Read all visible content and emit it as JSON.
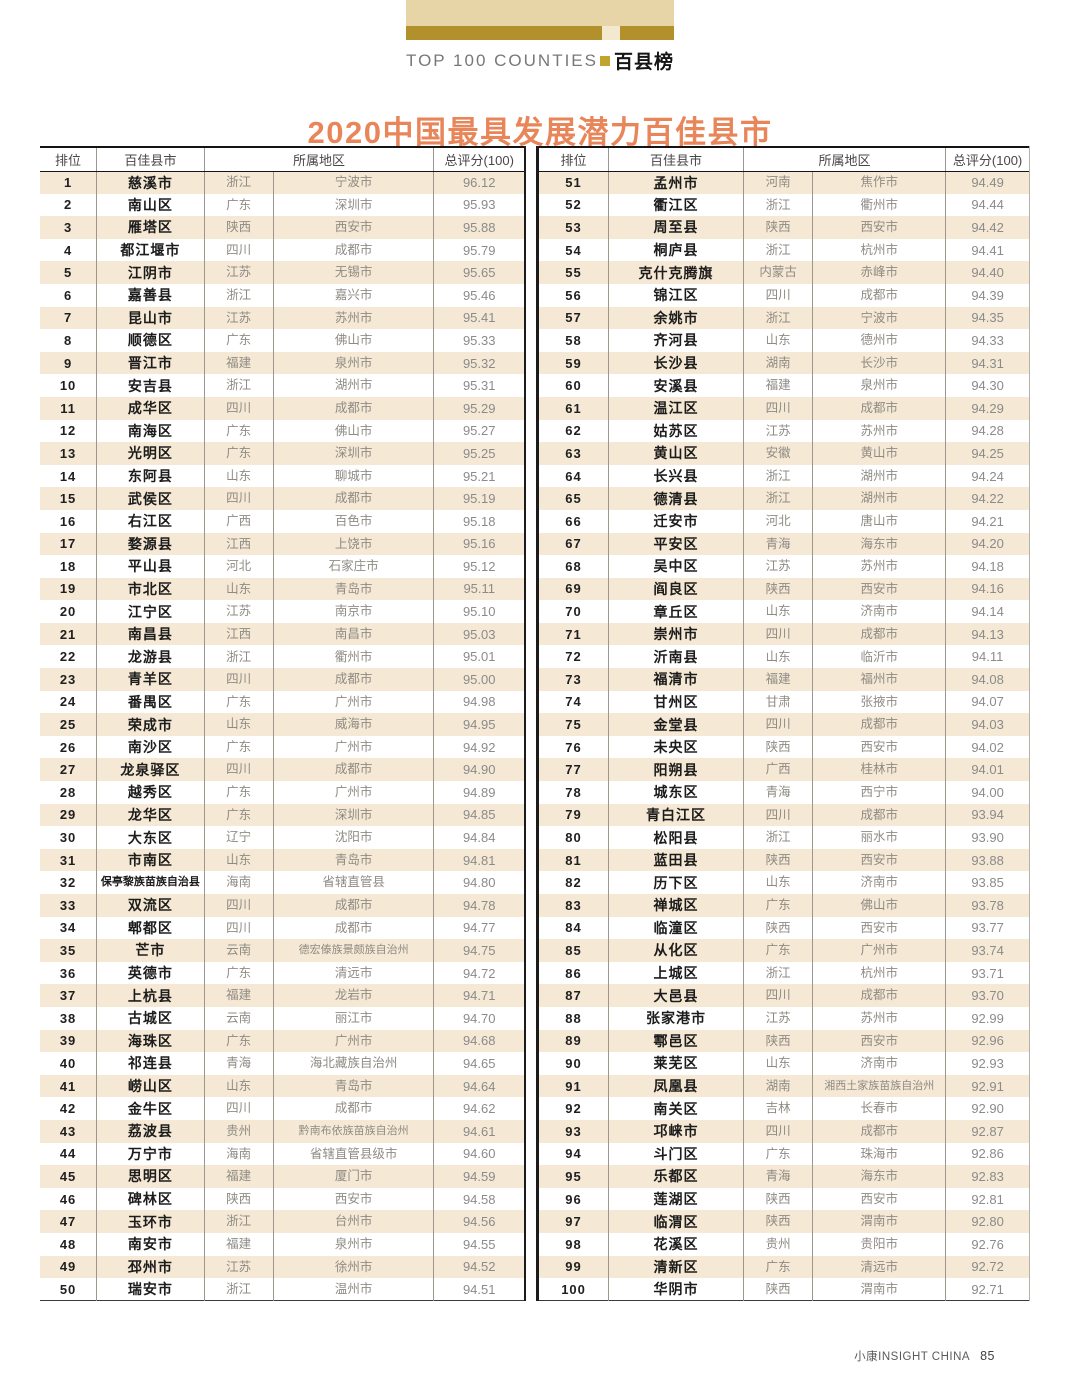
{
  "banner": {
    "label_en": "TOP 100 COUNTIES",
    "label_cn": "百县榜"
  },
  "title": "2020中国最具发展潜力百佳县市",
  "table": {
    "headers": {
      "rank": "排位",
      "county": "百佳县市",
      "region": "所属地区",
      "score": "总评分(100)"
    },
    "rows_left": [
      [
        "1",
        "慈溪市",
        "浙江",
        "宁波市",
        "96.12"
      ],
      [
        "2",
        "南山区",
        "广东",
        "深圳市",
        "95.93"
      ],
      [
        "3",
        "雁塔区",
        "陕西",
        "西安市",
        "95.88"
      ],
      [
        "4",
        "都江堰市",
        "四川",
        "成都市",
        "95.79"
      ],
      [
        "5",
        "江阴市",
        "江苏",
        "无锡市",
        "95.65"
      ],
      [
        "6",
        "嘉善县",
        "浙江",
        "嘉兴市",
        "95.46"
      ],
      [
        "7",
        "昆山市",
        "江苏",
        "苏州市",
        "95.41"
      ],
      [
        "8",
        "顺德区",
        "广东",
        "佛山市",
        "95.33"
      ],
      [
        "9",
        "晋江市",
        "福建",
        "泉州市",
        "95.32"
      ],
      [
        "10",
        "安吉县",
        "浙江",
        "湖州市",
        "95.31"
      ],
      [
        "11",
        "成华区",
        "四川",
        "成都市",
        "95.29"
      ],
      [
        "12",
        "南海区",
        "广东",
        "佛山市",
        "95.27"
      ],
      [
        "13",
        "光明区",
        "广东",
        "深圳市",
        "95.25"
      ],
      [
        "14",
        "东阿县",
        "山东",
        "聊城市",
        "95.21"
      ],
      [
        "15",
        "武侯区",
        "四川",
        "成都市",
        "95.19"
      ],
      [
        "16",
        "右江区",
        "广西",
        "百色市",
        "95.18"
      ],
      [
        "17",
        "婺源县",
        "江西",
        "上饶市",
        "95.16"
      ],
      [
        "18",
        "平山县",
        "河北",
        "石家庄市",
        "95.12"
      ],
      [
        "19",
        "市北区",
        "山东",
        "青岛市",
        "95.11"
      ],
      [
        "20",
        "江宁区",
        "江苏",
        "南京市",
        "95.10"
      ],
      [
        "21",
        "南昌县",
        "江西",
        "南昌市",
        "95.03"
      ],
      [
        "22",
        "龙游县",
        "浙江",
        "衢州市",
        "95.01"
      ],
      [
        "23",
        "青羊区",
        "四川",
        "成都市",
        "95.00"
      ],
      [
        "24",
        "番禺区",
        "广东",
        "广州市",
        "94.98"
      ],
      [
        "25",
        "荣成市",
        "山东",
        "威海市",
        "94.95"
      ],
      [
        "26",
        "南沙区",
        "广东",
        "广州市",
        "94.92"
      ],
      [
        "27",
        "龙泉驿区",
        "四川",
        "成都市",
        "94.90"
      ],
      [
        "28",
        "越秀区",
        "广东",
        "广州市",
        "94.89"
      ],
      [
        "29",
        "龙华区",
        "广东",
        "深圳市",
        "94.85"
      ],
      [
        "30",
        "大东区",
        "辽宁",
        "沈阳市",
        "94.84"
      ],
      [
        "31",
        "市南区",
        "山东",
        "青岛市",
        "94.81"
      ],
      [
        "32",
        "保亭黎族苗族自治县",
        "海南",
        "省辖直管县",
        "94.80"
      ],
      [
        "33",
        "双流区",
        "四川",
        "成都市",
        "94.78"
      ],
      [
        "34",
        "郫都区",
        "四川",
        "成都市",
        "94.77"
      ],
      [
        "35",
        "芒市",
        "云南",
        "德宏傣族景颇族自治州",
        "94.75"
      ],
      [
        "36",
        "英德市",
        "广东",
        "清远市",
        "94.72"
      ],
      [
        "37",
        "上杭县",
        "福建",
        "龙岩市",
        "94.71"
      ],
      [
        "38",
        "古城区",
        "云南",
        "丽江市",
        "94.70"
      ],
      [
        "39",
        "海珠区",
        "广东",
        "广州市",
        "94.68"
      ],
      [
        "40",
        "祁连县",
        "青海",
        "海北藏族自治州",
        "94.65"
      ],
      [
        "41",
        "崂山区",
        "山东",
        "青岛市",
        "94.64"
      ],
      [
        "42",
        "金牛区",
        "四川",
        "成都市",
        "94.62"
      ],
      [
        "43",
        "荔波县",
        "贵州",
        "黔南布依族苗族自治州",
        "94.61"
      ],
      [
        "44",
        "万宁市",
        "海南",
        "省辖直管县级市",
        "94.60"
      ],
      [
        "45",
        "思明区",
        "福建",
        "厦门市",
        "94.59"
      ],
      [
        "46",
        "碑林区",
        "陕西",
        "西安市",
        "94.58"
      ],
      [
        "47",
        "玉环市",
        "浙江",
        "台州市",
        "94.56"
      ],
      [
        "48",
        "南安市",
        "福建",
        "泉州市",
        "94.55"
      ],
      [
        "49",
        "邳州市",
        "江苏",
        "徐州市",
        "94.52"
      ],
      [
        "50",
        "瑞安市",
        "浙江",
        "温州市",
        "94.51"
      ]
    ],
    "rows_right": [
      [
        "51",
        "孟州市",
        "河南",
        "焦作市",
        "94.49"
      ],
      [
        "52",
        "衢江区",
        "浙江",
        "衢州市",
        "94.44"
      ],
      [
        "53",
        "周至县",
        "陕西",
        "西安市",
        "94.42"
      ],
      [
        "54",
        "桐庐县",
        "浙江",
        "杭州市",
        "94.41"
      ],
      [
        "55",
        "克什克腾旗",
        "内蒙古",
        "赤峰市",
        "94.40"
      ],
      [
        "56",
        "锦江区",
        "四川",
        "成都市",
        "94.39"
      ],
      [
        "57",
        "余姚市",
        "浙江",
        "宁波市",
        "94.35"
      ],
      [
        "58",
        "齐河县",
        "山东",
        "德州市",
        "94.33"
      ],
      [
        "59",
        "长沙县",
        "湖南",
        "长沙市",
        "94.31"
      ],
      [
        "60",
        "安溪县",
        "福建",
        "泉州市",
        "94.30"
      ],
      [
        "61",
        "温江区",
        "四川",
        "成都市",
        "94.29"
      ],
      [
        "62",
        "姑苏区",
        "江苏",
        "苏州市",
        "94.28"
      ],
      [
        "63",
        "黄山区",
        "安徽",
        "黄山市",
        "94.25"
      ],
      [
        "64",
        "长兴县",
        "浙江",
        "湖州市",
        "94.24"
      ],
      [
        "65",
        "德清县",
        "浙江",
        "湖州市",
        "94.22"
      ],
      [
        "66",
        "迁安市",
        "河北",
        "唐山市",
        "94.21"
      ],
      [
        "67",
        "平安区",
        "青海",
        "海东市",
        "94.20"
      ],
      [
        "68",
        "吴中区",
        "江苏",
        "苏州市",
        "94.18"
      ],
      [
        "69",
        "阎良区",
        "陕西",
        "西安市",
        "94.16"
      ],
      [
        "70",
        "章丘区",
        "山东",
        "济南市",
        "94.14"
      ],
      [
        "71",
        "崇州市",
        "四川",
        "成都市",
        "94.13"
      ],
      [
        "72",
        "沂南县",
        "山东",
        "临沂市",
        "94.11"
      ],
      [
        "73",
        "福清市",
        "福建",
        "福州市",
        "94.08"
      ],
      [
        "74",
        "甘州区",
        "甘肃",
        "张掖市",
        "94.07"
      ],
      [
        "75",
        "金堂县",
        "四川",
        "成都市",
        "94.03"
      ],
      [
        "76",
        "未央区",
        "陕西",
        "西安市",
        "94.02"
      ],
      [
        "77",
        "阳朔县",
        "广西",
        "桂林市",
        "94.01"
      ],
      [
        "78",
        "城东区",
        "青海",
        "西宁市",
        "94.00"
      ],
      [
        "79",
        "青白江区",
        "四川",
        "成都市",
        "93.94"
      ],
      [
        "80",
        "松阳县",
        "浙江",
        "丽水市",
        "93.90"
      ],
      [
        "81",
        "蓝田县",
        "陕西",
        "西安市",
        "93.88"
      ],
      [
        "82",
        "历下区",
        "山东",
        "济南市",
        "93.85"
      ],
      [
        "83",
        "禅城区",
        "广东",
        "佛山市",
        "93.78"
      ],
      [
        "84",
        "临潼区",
        "陕西",
        "西安市",
        "93.77"
      ],
      [
        "85",
        "从化区",
        "广东",
        "广州市",
        "93.74"
      ],
      [
        "86",
        "上城区",
        "浙江",
        "杭州市",
        "93.71"
      ],
      [
        "87",
        "大邑县",
        "四川",
        "成都市",
        "93.70"
      ],
      [
        "88",
        "张家港市",
        "江苏",
        "苏州市",
        "92.99"
      ],
      [
        "89",
        "鄠邑区",
        "陕西",
        "西安市",
        "92.96"
      ],
      [
        "90",
        "莱芜区",
        "山东",
        "济南市",
        "92.93"
      ],
      [
        "91",
        "凤凰县",
        "湖南",
        "湘西土家族苗族自治州",
        "92.91"
      ],
      [
        "92",
        "南关区",
        "吉林",
        "长春市",
        "92.90"
      ],
      [
        "93",
        "邛崃市",
        "四川",
        "成都市",
        "92.87"
      ],
      [
        "94",
        "斗门区",
        "广东",
        "珠海市",
        "92.86"
      ],
      [
        "95",
        "乐都区",
        "青海",
        "海东市",
        "92.83"
      ],
      [
        "96",
        "莲湖区",
        "陕西",
        "西安市",
        "92.81"
      ],
      [
        "97",
        "临渭区",
        "陕西",
        "渭南市",
        "92.80"
      ],
      [
        "98",
        "花溪区",
        "贵州",
        "贵阳市",
        "92.76"
      ],
      [
        "99",
        "清新区",
        "广东",
        "清远市",
        "92.72"
      ],
      [
        "100",
        "华阴市",
        "陕西",
        "渭南市",
        "92.71"
      ]
    ]
  },
  "footer": {
    "brand": "小康INSIGHT CHINA",
    "page_number": "85"
  },
  "colors": {
    "banner_tan": "#e7d5a7",
    "banner_gold": "#b2912c",
    "title_orange": "#e8865a",
    "stripe_beige": "#f5e8d4"
  }
}
